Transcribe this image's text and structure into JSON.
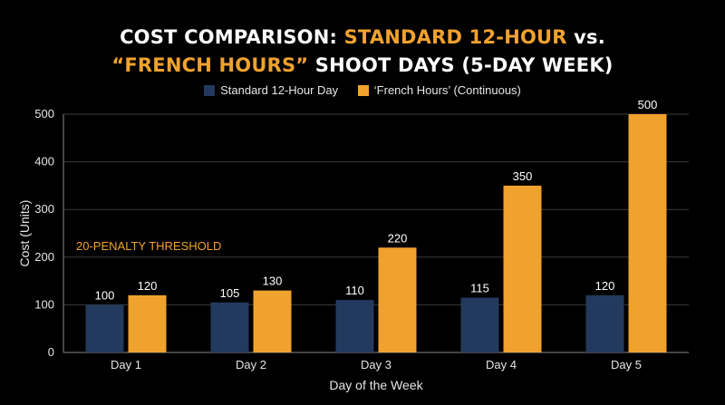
{
  "title": {
    "line1_white_a": "COST COMPARISON: ",
    "line1_orange": "STANDARD 12-HOUR",
    "line1_white_b": " vs.",
    "line2_orange": "“FRENCH HOURS”",
    "line2_white": " SHOOT DAYS (5-DAY WEEK)"
  },
  "colors": {
    "standard": "#233a5e",
    "french": "#f0a22e",
    "threshold": "#ffa31a",
    "grid": "#3a3a3a"
  },
  "chart_data": {
    "type": "bar",
    "categories": [
      "Day 1",
      "Day 2",
      "Day 3",
      "Day 4",
      "Day 5"
    ],
    "series": [
      {
        "name": "Standard 12-Hour Day",
        "values": [
          100,
          105,
          110,
          115,
          120
        ]
      },
      {
        "name": "‘French Hours’ (Continuous)",
        "values": [
          120,
          130,
          220,
          350,
          500
        ]
      }
    ],
    "xlabel": "Day of the Week",
    "ylabel": "Cost (Units)",
    "ylim": [
      0,
      500
    ],
    "yticks": [
      0,
      100,
      200,
      300,
      400,
      500
    ],
    "grid": true,
    "legend_position": "top-center",
    "threshold": {
      "value": 200,
      "label": "20-PENALTY THRESHOLD"
    }
  }
}
